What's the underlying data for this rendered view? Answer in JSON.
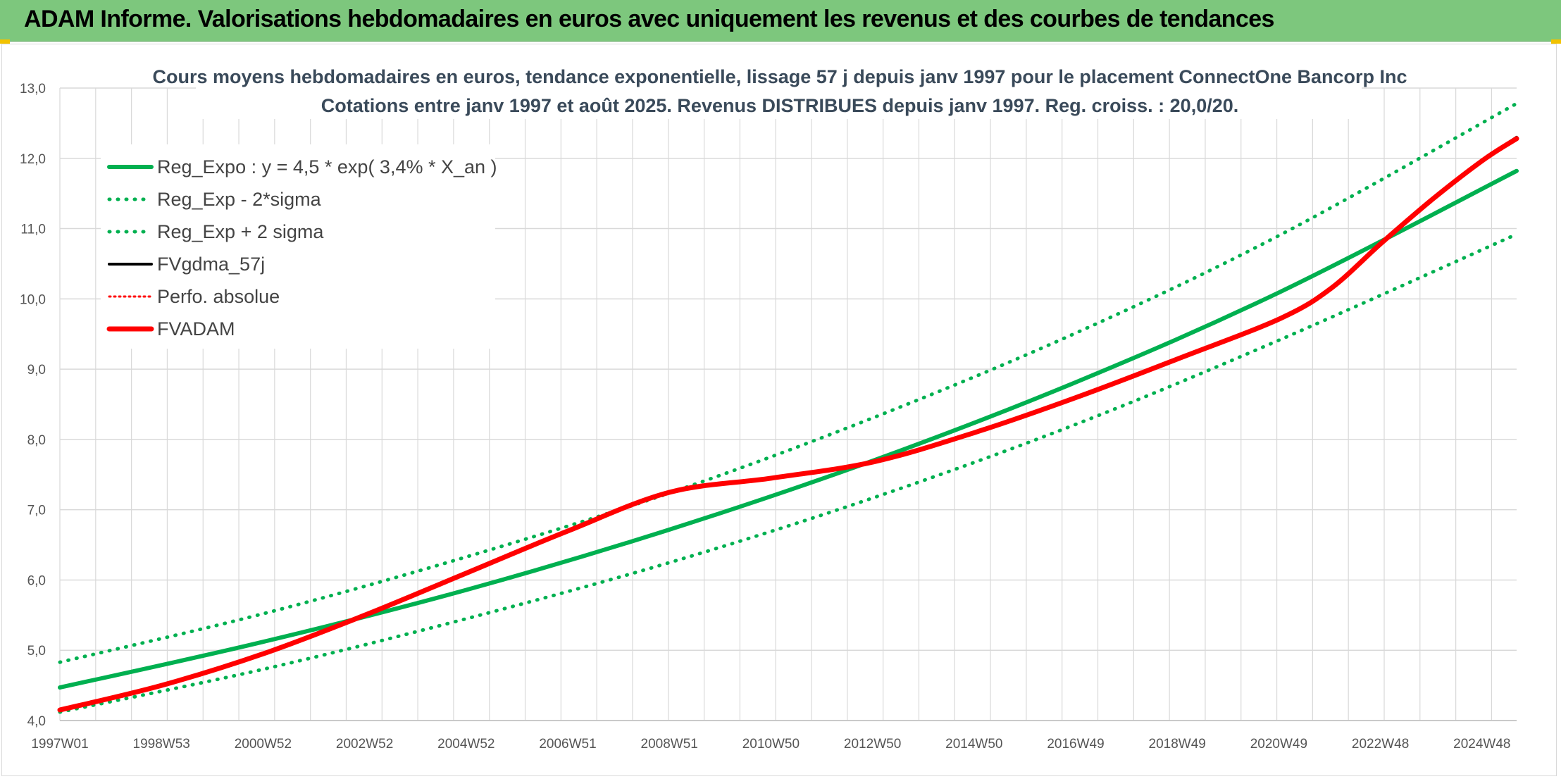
{
  "banner": {
    "title": "ADAM Informe. Valorisations hebdomadaires en euros avec uniquement les revenus et des courbes de tendances"
  },
  "colors": {
    "banner": "#7dc77d",
    "green": "#00b050",
    "red": "#ff0000",
    "black": "#000000",
    "grid": "#d9d9d9"
  },
  "chart_data": {
    "type": "line",
    "title": "Cours moyens hebdomadaires en euros, tendance exponentielle, lissage 57 j depuis janv 1997 pour le placement ConnectOne Bancorp Inc",
    "subtitle": "Cotations entre janv 1997 et août 2025. Revenus DISTRIBUES depuis janv 1997. Reg. croiss. : 20,0/20.",
    "xlabel": "",
    "ylabel": "",
    "ylim": [
      4.0,
      13.0
    ],
    "yticks": [
      "4,0",
      "5,0",
      "6,0",
      "7,0",
      "8,0",
      "9,0",
      "10,0",
      "11,0",
      "12,0",
      "13,0"
    ],
    "xlim": [
      1997.0,
      2025.65
    ],
    "xticks": [
      "1997W01",
      "1998W53",
      "2000W52",
      "2002W52",
      "2004W52",
      "2006W51",
      "2008W51",
      "2010W50",
      "2012W50",
      "2014W50",
      "2016W49",
      "2018W49",
      "2020W49",
      "2022W48",
      "2024W48"
    ],
    "grid": true,
    "legend_position": "top-left",
    "regression": {
      "a": 4.5,
      "rate": 0.034
    },
    "series": [
      {
        "name": "Reg_Expo : y = 4,5 * exp( 3,4% *  X_an )",
        "color": "#00b050",
        "style": "solid",
        "x": [
          1997,
          2001,
          2005,
          2009,
          2013,
          2017,
          2021,
          2025.65
        ],
        "y": [
          4.47,
          5.12,
          5.86,
          6.72,
          7.7,
          8.82,
          10.1,
          11.82
        ]
      },
      {
        "name": "Reg_Exp - 2*sigma",
        "color": "#00b050",
        "style": "dotted",
        "x": [
          1997,
          2001,
          2005,
          2009,
          2013,
          2017,
          2021,
          2025.65
        ],
        "y": [
          4.12,
          4.73,
          5.45,
          6.25,
          7.17,
          8.22,
          9.42,
          10.92
        ]
      },
      {
        "name": "Reg_Exp + 2 sigma",
        "color": "#00b050",
        "style": "dotted",
        "x": [
          1997,
          2001,
          2005,
          2009,
          2013,
          2017,
          2021,
          2025.65
        ],
        "y": [
          4.83,
          5.52,
          6.33,
          7.24,
          8.31,
          9.52,
          10.91,
          12.78
        ]
      },
      {
        "name": "FVgdma_57j",
        "color": "#000000",
        "style": "solid",
        "x": [
          1997,
          1999,
          2001,
          2003,
          2005,
          2007,
          2009,
          2011,
          2013,
          2015,
          2017,
          2019,
          2021,
          2022,
          2023,
          2024,
          2025,
          2025.65
        ],
        "y": [
          4.15,
          4.5,
          4.95,
          5.5,
          6.1,
          6.7,
          7.25,
          7.45,
          7.68,
          8.1,
          8.6,
          9.15,
          9.72,
          10.15,
          10.8,
          11.42,
          11.98,
          12.3
        ]
      },
      {
        "name": "Perfo. absolue",
        "color": "#ff0000",
        "style": "dotted",
        "x": [
          1997,
          1999,
          2001,
          2003,
          2005,
          2007,
          2009,
          2011,
          2013,
          2015,
          2017,
          2019,
          2021,
          2022,
          2023,
          2024,
          2025,
          2025.65
        ],
        "y": [
          4.15,
          4.5,
          4.95,
          5.5,
          6.1,
          6.7,
          7.25,
          7.45,
          7.68,
          8.1,
          8.6,
          9.15,
          9.72,
          10.15,
          10.8,
          11.42,
          11.98,
          12.3
        ]
      },
      {
        "name": "FVADAM",
        "color": "#ff0000",
        "style": "solid",
        "x": [
          1997,
          1999,
          2001,
          2003,
          2005,
          2007,
          2009,
          2011,
          2013,
          2015,
          2017,
          2019,
          2021,
          2022,
          2023,
          2024,
          2025,
          2025.65
        ],
        "y": [
          4.15,
          4.5,
          4.95,
          5.5,
          6.1,
          6.7,
          7.25,
          7.45,
          7.68,
          8.1,
          8.6,
          9.15,
          9.72,
          10.15,
          10.8,
          11.42,
          11.98,
          12.28
        ]
      }
    ]
  }
}
